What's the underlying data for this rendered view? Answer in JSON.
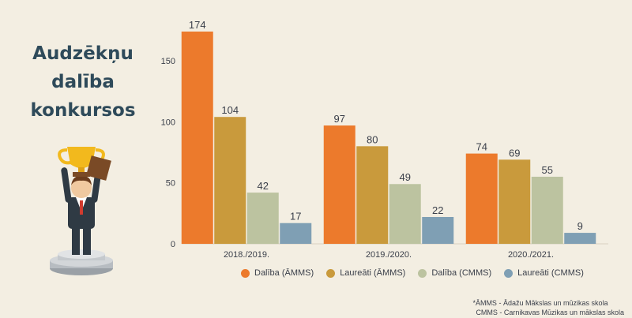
{
  "title": {
    "line1": "Audzēkņu",
    "line2": "dalība",
    "line3": "konkursos"
  },
  "chart_data": {
    "type": "bar",
    "categories": [
      "2018./2019.",
      "2019./2020.",
      "2020./2021."
    ],
    "series": [
      {
        "name": "Dalība (ĀMMS)",
        "color": "#ec7a2c",
        "values": [
          174,
          97,
          74
        ]
      },
      {
        "name": "Laureāti (ĀMMS)",
        "color": "#c99a3c",
        "values": [
          104,
          80,
          69
        ]
      },
      {
        "name": "Dalība (CMMS)",
        "color": "#bcc3a0",
        "values": [
          42,
          49,
          55
        ]
      },
      {
        "name": "Laureāti (CMMS)",
        "color": "#7f9fb4",
        "values": [
          17,
          22,
          9
        ]
      }
    ],
    "yticks": [
      0,
      50,
      100,
      150
    ],
    "ylim": [
      0,
      174
    ],
    "title": "Audzēkņu dalība konkursos",
    "xlabel": "",
    "ylabel": ""
  },
  "footnote": {
    "line1": "*ĀMMS - Ādažu Mākslas un mūzikas skola",
    "line2": "CMMS - Carnikavas Mūzikas un mākslas skola"
  }
}
